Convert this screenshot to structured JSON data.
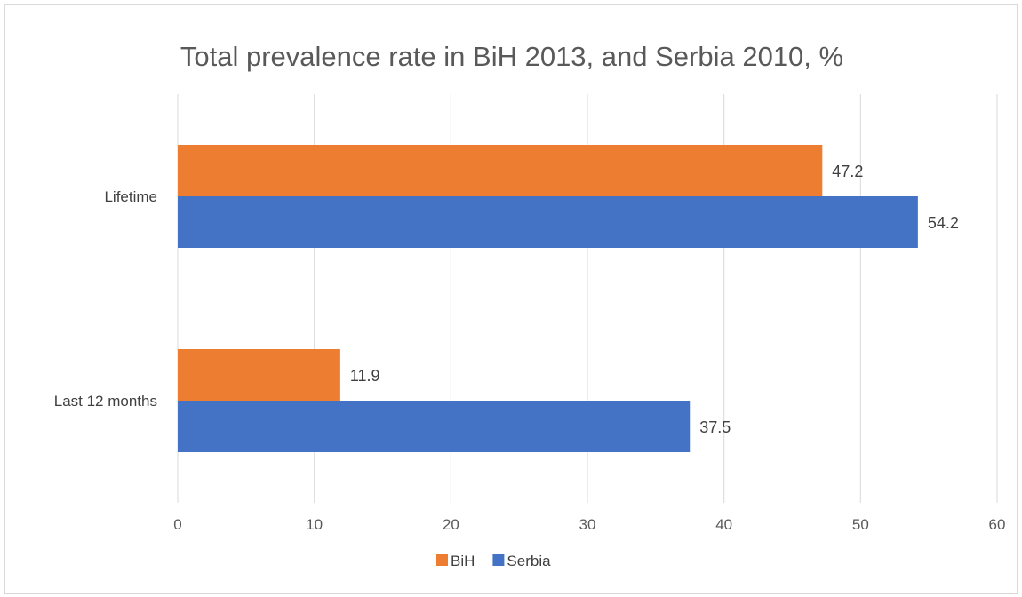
{
  "chart_data": {
    "type": "bar",
    "orientation": "horizontal",
    "title": "Total prevalence rate in BiH 2013, and Serbia 2010, %",
    "categories": [
      "Lifetime",
      "Last 12 months"
    ],
    "series": [
      {
        "name": "BiH",
        "values": [
          47.2,
          11.9
        ],
        "color": "#ED7D31"
      },
      {
        "name": "Serbia",
        "values": [
          54.2,
          37.5
        ],
        "color": "#4472C4"
      }
    ],
    "data_labels": [
      [
        "47.2",
        "54.2"
      ],
      [
        "11.9",
        "37.5"
      ]
    ],
    "xlim": [
      0,
      60
    ],
    "x_ticks": [
      "0",
      "10",
      "20",
      "30",
      "40",
      "50",
      "60"
    ],
    "xlabel": "",
    "ylabel": "",
    "grid": "vertical",
    "legend_position": "bottom"
  }
}
